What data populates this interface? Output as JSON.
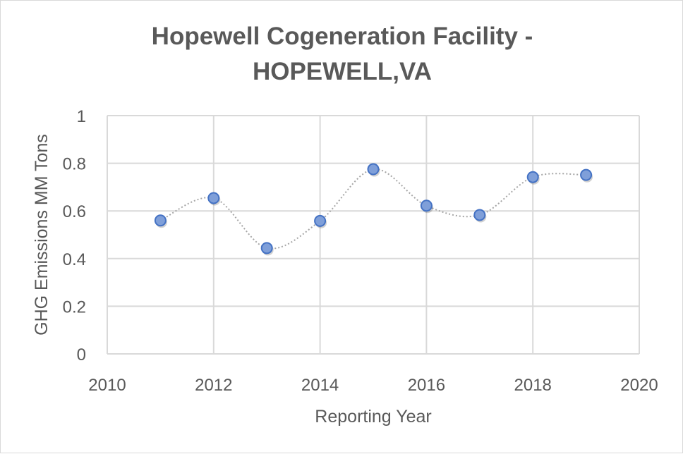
{
  "chart_data": {
    "type": "scatter",
    "title": [
      "Hopewell Cogeneration Facility -",
      "HOPEWELL,VA"
    ],
    "xlabel": "Reporting Year",
    "ylabel": "GHG Emissions MM Tons",
    "xlim": [
      2010,
      2020
    ],
    "ylim": [
      0,
      1
    ],
    "xticks": [
      2010,
      2012,
      2014,
      2016,
      2018,
      2020
    ],
    "yticks": [
      0,
      0.2,
      0.4,
      0.6,
      0.8,
      1
    ],
    "ytick_labels": [
      "0",
      "0.2",
      "0.4",
      "0.6",
      "0.8",
      "1"
    ],
    "grid": true,
    "line_style": "smoothed dotted",
    "series": [
      {
        "name": "GHG Emissions",
        "x": [
          2011,
          2012,
          2013,
          2014,
          2015,
          2016,
          2017,
          2018,
          2019
        ],
        "y": [
          0.56,
          0.654,
          0.444,
          0.558,
          0.775,
          0.622,
          0.583,
          0.742,
          0.751
        ],
        "marker_color": "#7f9fd9",
        "marker_edge": "#4472c4",
        "line_color": "#a6a6a6"
      }
    ]
  }
}
